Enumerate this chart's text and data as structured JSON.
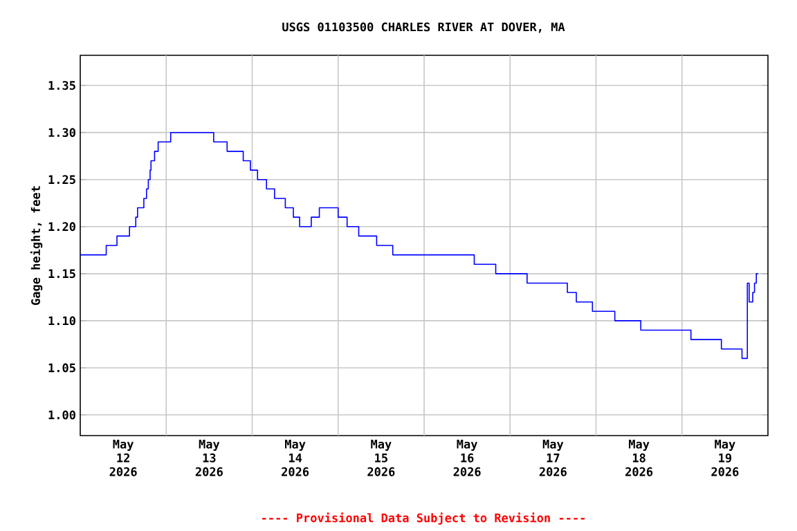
{
  "chart_data": {
    "type": "step",
    "title": "USGS 01103500 CHARLES RIVER AT DOVER, MA",
    "ylabel": "Gage height, feet",
    "annotations": [
      "---- Provisional Data Subject to Revision ----"
    ],
    "x": [
      "2026-05-12T00:00",
      "2026-05-12T07:15",
      "2026-05-12T10:15",
      "2026-05-12T13:45",
      "2026-05-12T15:30",
      "2026-05-12T16:00",
      "2026-05-12T17:45",
      "2026-05-12T18:30",
      "2026-05-12T19:00",
      "2026-05-12T19:30",
      "2026-05-12T19:45",
      "2026-05-12T20:45",
      "2026-05-12T21:45",
      "2026-05-13T01:15",
      "2026-05-13T13:15",
      "2026-05-13T17:00",
      "2026-05-13T21:30",
      "2026-05-13T23:30",
      "2026-05-14T01:30",
      "2026-05-14T04:00",
      "2026-05-14T06:15",
      "2026-05-14T09:15",
      "2026-05-14T11:30",
      "2026-05-14T13:15",
      "2026-05-14T16:30",
      "2026-05-14T18:45",
      "2026-05-15T00:00",
      "2026-05-15T02:30",
      "2026-05-15T05:45",
      "2026-05-15T10:45",
      "2026-05-15T15:15",
      "2026-05-16T14:00",
      "2026-05-16T20:00",
      "2026-05-17T04:45",
      "2026-05-17T16:00",
      "2026-05-17T18:30",
      "2026-05-17T23:00",
      "2026-05-18T05:15",
      "2026-05-18T12:30",
      "2026-05-19T02:30",
      "2026-05-19T11:00",
      "2026-05-19T16:45",
      "2026-05-19T18:15",
      "2026-05-19T18:45",
      "2026-05-19T19:45",
      "2026-05-19T20:15",
      "2026-05-19T20:45",
      "2026-05-19T21:15"
    ],
    "values": [
      1.17,
      1.18,
      1.19,
      1.2,
      1.21,
      1.22,
      1.23,
      1.24,
      1.25,
      1.26,
      1.27,
      1.28,
      1.29,
      1.3,
      1.29,
      1.28,
      1.27,
      1.26,
      1.25,
      1.24,
      1.23,
      1.22,
      1.21,
      1.2,
      1.21,
      1.22,
      1.21,
      1.2,
      1.19,
      1.18,
      1.17,
      1.16,
      1.15,
      1.14,
      1.13,
      1.12,
      1.11,
      1.1,
      1.09,
      1.08,
      1.07,
      1.06,
      1.14,
      1.12,
      1.13,
      1.14,
      1.15,
      1.15
    ],
    "color": "#0000ff",
    "xlim": [
      "2026-05-12T00:00",
      "2026-05-20T00:00"
    ],
    "ylim": [
      0.978,
      1.382
    ],
    "xticks": [
      {
        "value": "2026-05-12T12:00",
        "label": "May 12 2026"
      },
      {
        "value": "2026-05-13T12:00",
        "label": "May 13 2026"
      },
      {
        "value": "2026-05-14T12:00",
        "label": "May 14 2026"
      },
      {
        "value": "2026-05-15T12:00",
        "label": "May 15 2026"
      },
      {
        "value": "2026-05-16T12:00",
        "label": "May 16 2026"
      },
      {
        "value": "2026-05-17T12:00",
        "label": "May 17 2026"
      },
      {
        "value": "2026-05-18T12:00",
        "label": "May 18 2026"
      },
      {
        "value": "2026-05-19T12:00",
        "label": "May 19 2026"
      },
      {
        "value": "2026-05-13T00:00",
        "label": null
      },
      {
        "value": "2026-05-14T00:00",
        "label": null
      },
      {
        "value": "2026-05-15T00:00",
        "label": null
      },
      {
        "value": "2026-05-16T00:00",
        "label": null
      },
      {
        "value": "2026-05-17T00:00",
        "label": null
      },
      {
        "value": "2026-05-18T00:00",
        "label": null
      },
      {
        "value": "2026-05-19T00:00",
        "label": null
      }
    ],
    "yticks": [
      {
        "value": 1.0,
        "label": "1.00"
      },
      {
        "value": 1.05,
        "label": "1.05"
      },
      {
        "value": 1.1,
        "label": "1.10"
      },
      {
        "value": 1.15,
        "label": "1.15"
      },
      {
        "value": 1.2,
        "label": "1.20"
      },
      {
        "value": 1.25,
        "label": "1.25"
      },
      {
        "value": 1.3,
        "label": "1.30"
      },
      {
        "value": 1.35,
        "label": "1.35"
      }
    ],
    "grid": true,
    "marker": "none",
    "line_style": "solid"
  }
}
